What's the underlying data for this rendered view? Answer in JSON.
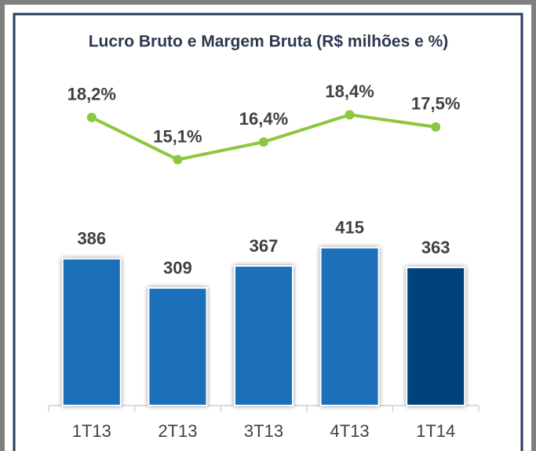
{
  "chart_data": {
    "type": "bar-line",
    "title": "Lucro Bruto e Margem Bruta (R$ milhões e %)",
    "categories": [
      "1T13",
      "2T13",
      "3T13",
      "4T13",
      "1T14"
    ],
    "series": [
      {
        "type": "bar",
        "colors": [
          "#1f6fba",
          "#1f6fba",
          "#1f6fba",
          "#1f6fba",
          "#00437c"
        ],
        "values": [
          386,
          309,
          367,
          415,
          363
        ]
      },
      {
        "type": "line",
        "axis": "y2",
        "color": "#8dc63f",
        "values": [
          18.2,
          15.1,
          16.4,
          18.4,
          17.5
        ],
        "value_labels": [
          "18,2%",
          "15,1%",
          "16,4%",
          "18,4%",
          "17,5%"
        ]
      }
    ],
    "ylim": [
      0,
      1000
    ],
    "y2lim": [
      -3,
      25
    ]
  }
}
